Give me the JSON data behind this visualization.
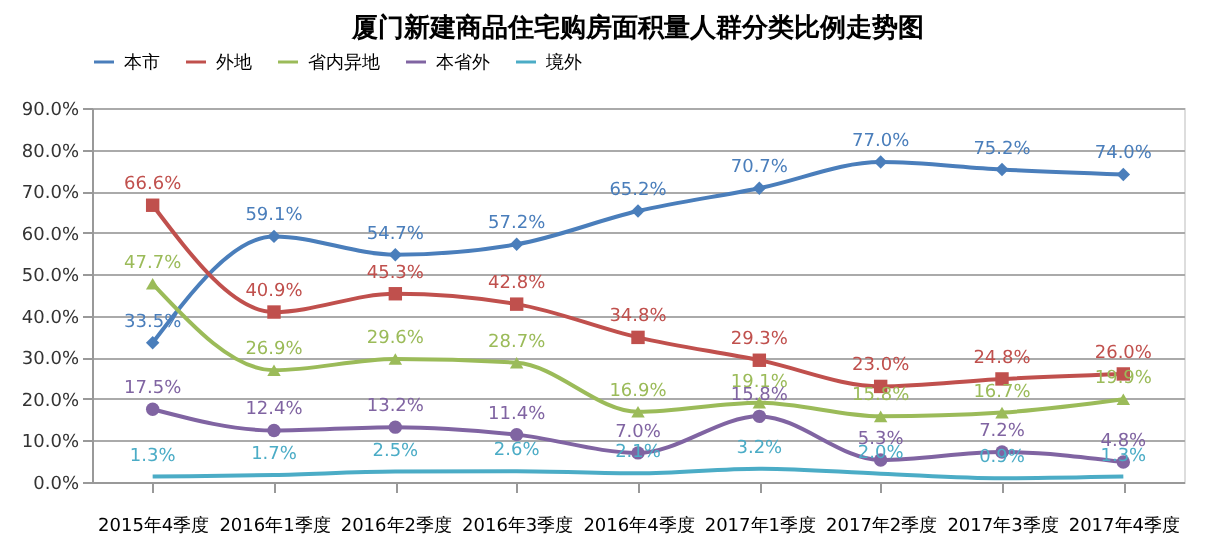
{
  "chart_data": {
    "type": "line",
    "title": "厦门新建商品住宅购房面积量人群分类比例走势图",
    "categories": [
      "2015年4季度",
      "2016年1季度",
      "2016年2季度",
      "2016年3季度",
      "2016年4季度",
      "2017年1季度",
      "2017年2季度",
      "2017年3季度",
      "2017年4季度"
    ],
    "ylim": [
      0,
      90
    ],
    "yticks": [
      {
        "value": 0,
        "label": "0.0%"
      },
      {
        "value": 10,
        "label": "10.0%"
      },
      {
        "value": 20,
        "label": "20.0%"
      },
      {
        "value": 30,
        "label": "30.0%"
      },
      {
        "value": 40,
        "label": "40.0%"
      },
      {
        "value": 50,
        "label": "50.0%"
      },
      {
        "value": 60,
        "label": "60.0%"
      },
      {
        "value": 70,
        "label": "70.0%"
      },
      {
        "value": 80,
        "label": "80.0%"
      },
      {
        "value": 90,
        "label": "90.0%"
      }
    ],
    "grid": "y",
    "legend": "top",
    "series": [
      {
        "name": "本市",
        "color": "#4a7ebb",
        "marker": "diamond",
        "values": [
          33.5,
          59.1,
          54.7,
          57.2,
          65.2,
          70.7,
          77.0,
          75.2,
          74.0
        ],
        "value_labels": [
          "33.5%",
          "59.1%",
          "54.7%",
          "57.2%",
          "65.2%",
          "70.7%",
          "77.0%",
          "75.2%",
          "74.0%"
        ]
      },
      {
        "name": "外地",
        "color": "#c0504d",
        "marker": "square",
        "values": [
          66.6,
          40.9,
          45.3,
          42.8,
          34.8,
          29.3,
          23.0,
          24.8,
          26.0
        ],
        "value_labels": [
          "66.6%",
          "40.9%",
          "45.3%",
          "42.8%",
          "34.8%",
          "29.3%",
          "23.0%",
          "24.8%",
          "26.0%"
        ]
      },
      {
        "name": "省内异地",
        "color": "#9bbb59",
        "marker": "triangle",
        "values": [
          47.7,
          26.9,
          29.6,
          28.7,
          16.9,
          19.1,
          15.8,
          16.7,
          19.9
        ],
        "value_labels": [
          "47.7%",
          "26.9%",
          "29.6%",
          "28.7%",
          "16.9%",
          "19.1%",
          "15.8%",
          "16.7%",
          "19.9%"
        ]
      },
      {
        "name": "本省外",
        "color": "#8064a2",
        "marker": "circle",
        "values": [
          17.5,
          12.4,
          13.2,
          11.4,
          7.0,
          15.8,
          5.3,
          7.2,
          4.8
        ],
        "value_labels": [
          "17.5%",
          "12.4%",
          "13.2%",
          "11.4%",
          "7.0%",
          "15.8%",
          "5.3%",
          "7.2%",
          "4.8%"
        ]
      },
      {
        "name": "境外",
        "color": "#4bacc6",
        "marker": "none",
        "values": [
          1.3,
          1.7,
          2.5,
          2.6,
          2.1,
          3.2,
          2.0,
          0.9,
          1.3
        ],
        "value_labels": [
          "1.3%",
          "1.7%",
          "2.5%",
          "2.6%",
          "2.1%",
          "3.2%",
          "2.0%",
          "0.9%",
          "1.3%"
        ]
      }
    ]
  }
}
